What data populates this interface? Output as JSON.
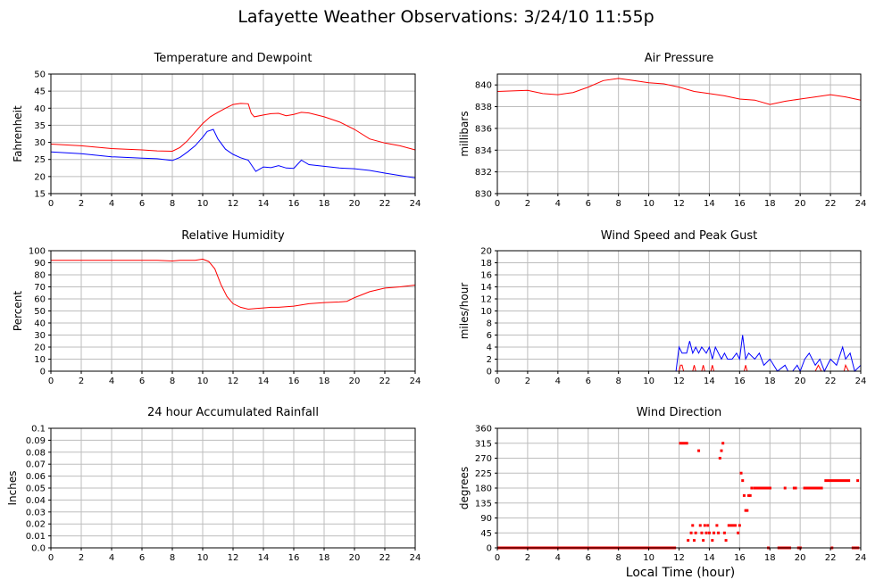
{
  "page": {
    "title": "Lafayette Weather Observations: 3/24/10 11:55p",
    "xlabel": "Local Time (hour)"
  },
  "colors": {
    "red": "#ff0000",
    "blue": "#0000ff",
    "grid": "#bdbdbd",
    "frame": "#000000"
  },
  "chart_data": [
    {
      "id": "temp",
      "type": "line",
      "title": "Temperature and Dewpoint",
      "xlabel": "",
      "ylabel": "Fahrenheit",
      "xlim": [
        0,
        24
      ],
      "ylim": [
        15,
        50
      ],
      "xticks": [
        "0",
        "2",
        "4",
        "6",
        "8",
        "10",
        "12",
        "14",
        "16",
        "18",
        "20",
        "22",
        "24"
      ],
      "yticks": [
        "15",
        "20",
        "25",
        "30",
        "35",
        "40",
        "45",
        "50"
      ],
      "grid": true,
      "series": [
        {
          "color": "#ff0000",
          "x": [
            0,
            2,
            4,
            6,
            7,
            8,
            8.5,
            9,
            9.5,
            10,
            10.5,
            11,
            11.5,
            12,
            12.5,
            13,
            13.2,
            13.4,
            14,
            14.5,
            15,
            15.5,
            16,
            16.5,
            17,
            18,
            19,
            20,
            21,
            22,
            23,
            24
          ],
          "y": [
            29.5,
            29,
            28.2,
            27.8,
            27.5,
            27.4,
            28.5,
            30.5,
            33,
            35.5,
            37.5,
            38.8,
            40,
            41.1,
            41.4,
            41.3,
            38.5,
            37.5,
            38,
            38.4,
            38.5,
            37.8,
            38.2,
            38.8,
            38.6,
            37.5,
            36,
            33.8,
            31,
            29.8,
            29,
            27.8
          ]
        },
        {
          "color": "#0000ff",
          "x": [
            0,
            2,
            4,
            6,
            7,
            8,
            8.5,
            9,
            9.5,
            10,
            10.3,
            10.7,
            11,
            11.5,
            12,
            12.5,
            13,
            13.5,
            14,
            14.5,
            15,
            15.5,
            16,
            16.5,
            17,
            18,
            19,
            20,
            21,
            22,
            23,
            24
          ],
          "y": [
            27.2,
            26.7,
            25.8,
            25.4,
            25.2,
            24.7,
            25.6,
            27.2,
            29,
            31.5,
            33.2,
            33.8,
            31,
            28,
            26.5,
            25.5,
            24.8,
            21.5,
            22.8,
            22.6,
            23.2,
            22.5,
            22.4,
            24.8,
            23.5,
            23,
            22.5,
            22.3,
            21.8,
            21,
            20.3,
            19.6
          ]
        }
      ]
    },
    {
      "id": "pressure",
      "type": "line",
      "title": "Air Pressure",
      "xlabel": "",
      "ylabel": "millibars",
      "xlim": [
        0,
        24
      ],
      "ylim": [
        830,
        841
      ],
      "xticks": [
        "0",
        "2",
        "4",
        "6",
        "8",
        "10",
        "12",
        "14",
        "16",
        "18",
        "20",
        "22",
        "24"
      ],
      "yticks": [
        "830",
        "832",
        "834",
        "836",
        "838",
        "840"
      ],
      "ytick_values": [
        830,
        832,
        834,
        836,
        838,
        840
      ],
      "grid": true,
      "series": [
        {
          "color": "#ff0000",
          "x": [
            0,
            2,
            3,
            4,
            5,
            6,
            7,
            8,
            9,
            10,
            11,
            12,
            13,
            14,
            15,
            16,
            17,
            18,
            19,
            20,
            21,
            22,
            23,
            24
          ],
          "y": [
            839.4,
            839.5,
            839.2,
            839.1,
            839.3,
            839.8,
            840.4,
            840.6,
            840.4,
            840.2,
            840.1,
            839.8,
            839.4,
            839.2,
            839.0,
            838.7,
            838.6,
            838.2,
            838.5,
            838.7,
            838.9,
            839.1,
            838.9,
            838.6
          ]
        }
      ]
    },
    {
      "id": "humidity",
      "type": "line",
      "title": "Relative Humidity",
      "xlabel": "",
      "ylabel": "Percent",
      "xlim": [
        0,
        24
      ],
      "ylim": [
        0,
        100
      ],
      "xticks": [
        "0",
        "2",
        "4",
        "6",
        "8",
        "10",
        "12",
        "14",
        "16",
        "18",
        "20",
        "22",
        "24"
      ],
      "yticks": [
        "0",
        "10",
        "20",
        "30",
        "40",
        "50",
        "60",
        "70",
        "80",
        "90",
        "100"
      ],
      "grid": true,
      "series": [
        {
          "color": "#ff0000",
          "x": [
            0,
            2,
            4,
            6,
            7,
            8,
            8.5,
            9,
            9.5,
            10,
            10.4,
            10.8,
            11.2,
            11.6,
            12,
            12.5,
            13,
            13.5,
            14,
            14.5,
            15,
            15.5,
            16,
            16.5,
            17,
            18,
            19,
            19.5,
            20,
            21,
            22,
            23,
            24
          ],
          "y": [
            92,
            92,
            92,
            92,
            92,
            91.5,
            92,
            92,
            92,
            93,
            91,
            85,
            72,
            62,
            56,
            53,
            51.5,
            52,
            52.5,
            53,
            53,
            53.5,
            54,
            55,
            56,
            57,
            57.5,
            58,
            61,
            66,
            69,
            70,
            71.5
          ]
        }
      ]
    },
    {
      "id": "wind",
      "type": "line",
      "title": "Wind Speed and Peak Gust",
      "xlabel": "",
      "ylabel": "miles/hour",
      "xlim": [
        0,
        24
      ],
      "ylim": [
        0,
        20
      ],
      "xticks": [
        "0",
        "2",
        "4",
        "6",
        "8",
        "10",
        "12",
        "14",
        "16",
        "18",
        "20",
        "22",
        "24"
      ],
      "yticks": [
        "0",
        "2",
        "4",
        "6",
        "8",
        "10",
        "12",
        "14",
        "16",
        "18",
        "20"
      ],
      "grid": true,
      "series": [
        {
          "color": "#0000ff",
          "x": [
            0,
            11.8,
            12,
            12.2,
            12.5,
            12.7,
            12.9,
            13.1,
            13.3,
            13.5,
            13.8,
            14,
            14.2,
            14.4,
            14.6,
            14.8,
            15,
            15.2,
            15.5,
            15.8,
            16,
            16.2,
            16.4,
            16.6,
            17,
            17.3,
            17.6,
            18,
            18.5,
            19,
            19.2,
            19.5,
            19.8,
            20,
            20.3,
            20.6,
            21,
            21.3,
            21.6,
            22,
            22.4,
            22.8,
            23,
            23.3,
            23.6,
            24
          ],
          "y": [
            0,
            0,
            4,
            3,
            3,
            5,
            3,
            4,
            3,
            4,
            3,
            4,
            2,
            4,
            3,
            2,
            3,
            2,
            2,
            3,
            2,
            6,
            2,
            3,
            2,
            3,
            1,
            2,
            0,
            1,
            0,
            0,
            1,
            0,
            2,
            3,
            1,
            2,
            0,
            2,
            1,
            4,
            2,
            3,
            0,
            1
          ]
        },
        {
          "color": "#ff0000",
          "x": [
            0,
            12,
            12.1,
            12.2,
            12.3,
            12.9,
            13,
            13.1,
            13.5,
            13.6,
            13.7,
            14.1,
            14.2,
            14.3,
            16.3,
            16.4,
            16.5,
            21,
            21.2,
            21.4,
            22.9,
            23,
            23.2,
            24
          ],
          "y": [
            0,
            0,
            1,
            1,
            0,
            0,
            1,
            0,
            0,
            1,
            0,
            0,
            1,
            0,
            0,
            1,
            0,
            0,
            1,
            0,
            0,
            1,
            0,
            0
          ]
        }
      ]
    },
    {
      "id": "rain",
      "type": "line",
      "title": "24 hour Accumulated Rainfall",
      "xlabel": "",
      "ylabel": "Inches",
      "xlim": [
        0,
        24
      ],
      "ylim": [
        0,
        0.1
      ],
      "xticks": [
        "0",
        "2",
        "4",
        "6",
        "8",
        "10",
        "12",
        "14",
        "16",
        "18",
        "20",
        "22",
        "24"
      ],
      "yticks": [
        "0.0",
        "0.01",
        "0.02",
        "0.03",
        "0.04",
        "0.05",
        "0.06",
        "0.07",
        "0.08",
        "0.09",
        "0.1"
      ],
      "grid": true,
      "series": [
        {
          "color": "#ff0000",
          "x": [
            0,
            24
          ],
          "y": [
            0,
            0
          ]
        }
      ]
    },
    {
      "id": "direction",
      "type": "scatter",
      "title": "Wind Direction",
      "xlabel": "Local Time (hour)",
      "ylabel": "degrees",
      "xlim": [
        0,
        24
      ],
      "ylim": [
        0,
        360
      ],
      "xticks": [
        "0",
        "2",
        "4",
        "6",
        "8",
        "10",
        "12",
        "14",
        "16",
        "18",
        "20",
        "22",
        "24"
      ],
      "yticks": [
        "0",
        "45",
        "90",
        "135",
        "180",
        "225",
        "270",
        "315",
        "360"
      ],
      "grid": true,
      "segments": [
        {
          "color": "#ff0000",
          "x0": 0,
          "x1": 11.8,
          "y": 0
        },
        {
          "color": "#ff0000",
          "x0": 12.0,
          "x1": 12.6,
          "y": 315
        },
        {
          "color": "#ff0000",
          "x0": 15.2,
          "x1": 15.8,
          "y": 67.5
        },
        {
          "color": "#ff0000",
          "x0": 16.9,
          "x1": 18.1,
          "y": 180
        },
        {
          "color": "#ff0000",
          "x0": 18.5,
          "x1": 19.4,
          "y": 0
        },
        {
          "color": "#ff0000",
          "x0": 19.8,
          "x1": 20.1,
          "y": 0
        },
        {
          "color": "#ff0000",
          "x0": 20.2,
          "x1": 21.5,
          "y": 180
        },
        {
          "color": "#ff0000",
          "x0": 21.6,
          "x1": 23.3,
          "y": 202.5
        },
        {
          "color": "#ff0000",
          "x0": 23.4,
          "x1": 23.9,
          "y": 0
        }
      ],
      "points": [
        {
          "x": 12.6,
          "y": 22.5
        },
        {
          "x": 12.8,
          "y": 45
        },
        {
          "x": 12.9,
          "y": 67.5
        },
        {
          "x": 13.0,
          "y": 22.5
        },
        {
          "x": 13.1,
          "y": 45
        },
        {
          "x": 13.3,
          "y": 292.5
        },
        {
          "x": 13.4,
          "y": 67.5
        },
        {
          "x": 13.5,
          "y": 45
        },
        {
          "x": 13.6,
          "y": 22.5
        },
        {
          "x": 13.7,
          "y": 67.5
        },
        {
          "x": 13.8,
          "y": 45
        },
        {
          "x": 13.9,
          "y": 67.5
        },
        {
          "x": 14.0,
          "y": 45
        },
        {
          "x": 14.2,
          "y": 22.5
        },
        {
          "x": 14.3,
          "y": 45
        },
        {
          "x": 14.5,
          "y": 67.5
        },
        {
          "x": 14.6,
          "y": 45
        },
        {
          "x": 14.7,
          "y": 270
        },
        {
          "x": 14.8,
          "y": 292.5
        },
        {
          "x": 14.9,
          "y": 315
        },
        {
          "x": 15.0,
          "y": 45
        },
        {
          "x": 15.1,
          "y": 22.5
        },
        {
          "x": 15.9,
          "y": 45
        },
        {
          "x": 16.0,
          "y": 67.5
        },
        {
          "x": 16.1,
          "y": 225
        },
        {
          "x": 16.2,
          "y": 202.5
        },
        {
          "x": 16.3,
          "y": 157.5
        },
        {
          "x": 16.4,
          "y": 112.5
        },
        {
          "x": 16.5,
          "y": 112.5
        },
        {
          "x": 16.6,
          "y": 157.5
        },
        {
          "x": 16.7,
          "y": 157.5
        },
        {
          "x": 16.8,
          "y": 180
        },
        {
          "x": 17.9,
          "y": 0
        },
        {
          "x": 19.0,
          "y": 180
        },
        {
          "x": 19.6,
          "y": 180
        },
        {
          "x": 19.7,
          "y": 180
        },
        {
          "x": 22.1,
          "y": 0
        },
        {
          "x": 23.8,
          "y": 202.5
        }
      ]
    }
  ]
}
